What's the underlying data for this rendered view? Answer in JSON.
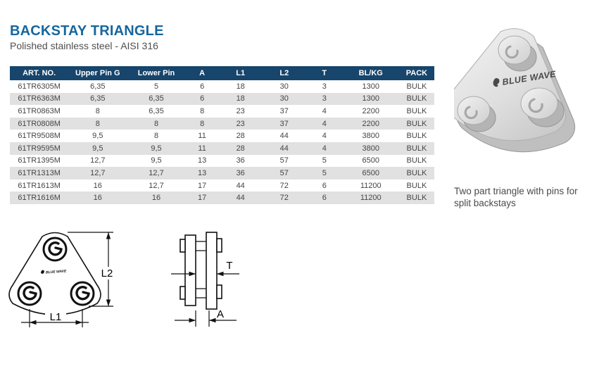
{
  "page": {
    "title": "BACKSTAY TRIANGLE",
    "subtitle": "Polished stainless steel - AISI 316"
  },
  "table": {
    "headers": [
      "ART. NO.",
      "Upper Pin G",
      "Lower Pin",
      "A",
      "L1",
      "L2",
      "T",
      "BL/KG",
      "PACK"
    ],
    "rows": [
      [
        "61TR6305M",
        "6,35",
        "5",
        "6",
        "18",
        "30",
        "3",
        "1300",
        "BULK"
      ],
      [
        "61TR6363M",
        "6,35",
        "6,35",
        "6",
        "18",
        "30",
        "3",
        "1300",
        "BULK"
      ],
      [
        "61TR0863M",
        "8",
        "6,35",
        "8",
        "23",
        "37",
        "4",
        "2200",
        "BULK"
      ],
      [
        "61TR0808M",
        "8",
        "8",
        "8",
        "23",
        "37",
        "4",
        "2200",
        "BULK"
      ],
      [
        "61TR9508M",
        "9,5",
        "8",
        "11",
        "28",
        "44",
        "4",
        "3800",
        "BULK"
      ],
      [
        "61TR9595M",
        "9,5",
        "9,5",
        "11",
        "28",
        "44",
        "4",
        "3800",
        "BULK"
      ],
      [
        "61TR1395M",
        "12,7",
        "9,5",
        "13",
        "36",
        "57",
        "5",
        "6500",
        "BULK"
      ],
      [
        "61TR1313M",
        "12,7",
        "12,7",
        "13",
        "36",
        "57",
        "5",
        "6500",
        "BULK"
      ],
      [
        "61TR1613M",
        "16",
        "12,7",
        "17",
        "44",
        "72",
        "6",
        "11200",
        "BULK"
      ],
      [
        "61TR1616M",
        "16",
        "16",
        "17",
        "44",
        "72",
        "6",
        "11200",
        "BULK"
      ]
    ]
  },
  "photo": {
    "logo_text": "BLUE WAVE",
    "caption": "Two part triangle with pins for split backstays"
  },
  "drawings": {
    "front_view": {
      "logo_text": "BLUE WAVE",
      "l1_label": "L1",
      "l2_label": "L2"
    },
    "side_view": {
      "t_label": "T",
      "a_label": "A"
    }
  },
  "colors": {
    "accent_blue": "#15679e",
    "table_header_bg": "#17456b",
    "row_alt_bg": "#e1e1e1",
    "body_text": "#454545",
    "drawing_line": "#111111"
  }
}
